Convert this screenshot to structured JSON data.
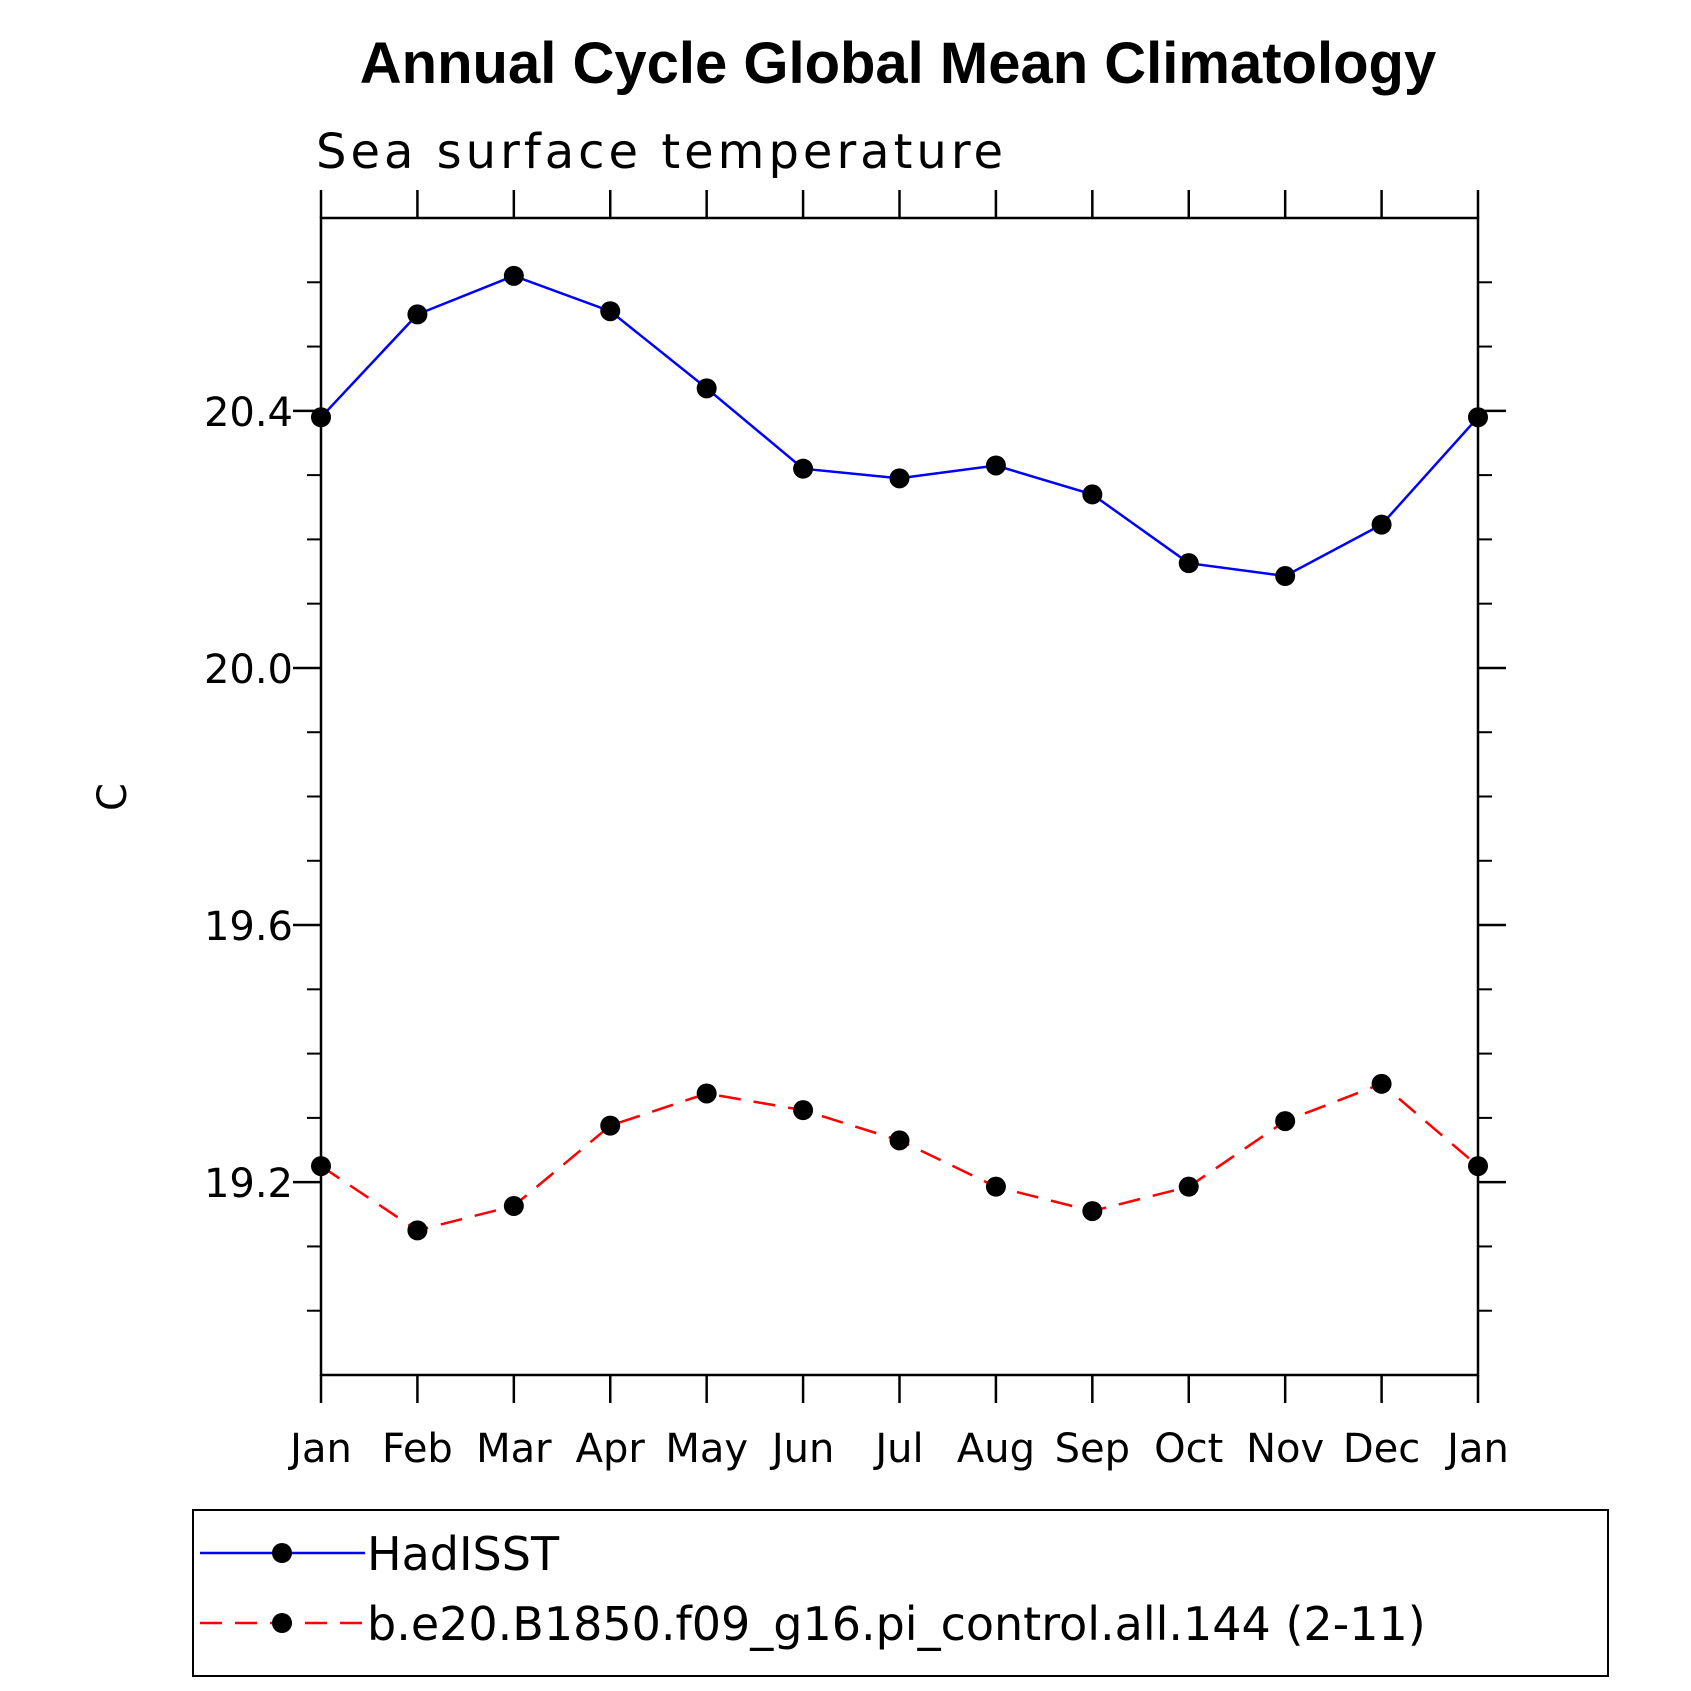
{
  "chart_data": {
    "type": "line",
    "title": "Annual Cycle Global Mean Climatology",
    "subtitle": "Sea surface temperature",
    "xlabel": "",
    "ylabel": "C",
    "categories": [
      "Jan",
      "Feb",
      "Mar",
      "Apr",
      "May",
      "Jun",
      "Jul",
      "Aug",
      "Sep",
      "Oct",
      "Nov",
      "Dec",
      "Jan"
    ],
    "ylim": [
      18.9,
      20.7
    ],
    "yticks": [
      "20.4",
      "20.0",
      "19.6",
      "19.2"
    ],
    "series": [
      {
        "name": "HadISST",
        "color": "#0000ff",
        "line_style": "solid",
        "marker": "circle",
        "values": [
          20.39,
          20.55,
          20.61,
          20.555,
          20.435,
          20.31,
          20.295,
          20.315,
          20.27,
          20.163,
          20.143,
          20.223,
          20.39
        ]
      },
      {
        "name": "b.e20.B1850.f09_g16.pi_control.all.144 (2-11)",
        "color": "#ff0000",
        "line_style": "dashed",
        "marker": "circle",
        "values": [
          19.225,
          19.125,
          19.163,
          19.288,
          19.338,
          19.312,
          19.265,
          19.193,
          19.155,
          19.193,
          19.295,
          19.353,
          19.225
        ]
      }
    ],
    "legend": {
      "position": "bottom",
      "entries": [
        "HadISST",
        "b.e20.B1850.f09_g16.pi_control.all.144 (2-11)"
      ]
    },
    "grid": false
  }
}
